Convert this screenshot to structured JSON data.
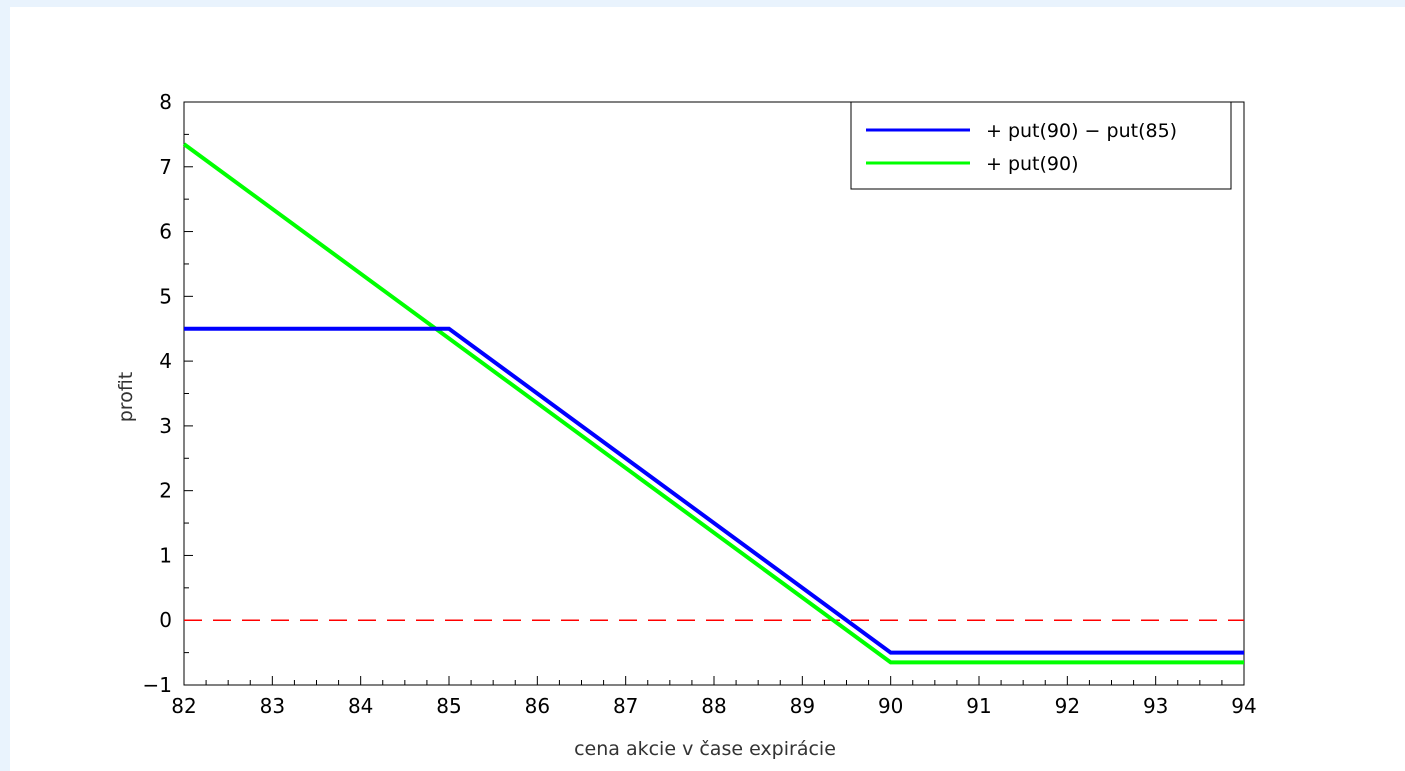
{
  "chart_data": {
    "type": "line",
    "title": "",
    "xlabel": "cena akcie v čase expirácie",
    "ylabel": "profit",
    "xlim": [
      82,
      94
    ],
    "ylim": [
      -1,
      8
    ],
    "x_ticks": [
      82,
      83,
      84,
      85,
      86,
      87,
      88,
      89,
      90,
      91,
      92,
      93,
      94
    ],
    "y_ticks": [
      -1,
      0,
      1,
      2,
      3,
      4,
      5,
      6,
      7,
      8
    ],
    "x_tick_labels": [
      "82",
      "83",
      "84",
      "85",
      "86",
      "87",
      "88",
      "89",
      "90",
      "91",
      "92",
      "93",
      "94"
    ],
    "y_tick_labels": [
      "−1",
      "0",
      "1",
      "2",
      "3",
      "4",
      "5",
      "6",
      "7",
      "8"
    ],
    "grid": false,
    "legend_position": "top-right",
    "series": [
      {
        "name": "+ put(90) − put(85)",
        "color": "#0000ff",
        "x": [
          82,
          85,
          90,
          94
        ],
        "y": [
          4.5,
          4.5,
          -0.5,
          -0.5
        ]
      },
      {
        "name": "+ put(90)",
        "color": "#00ff00",
        "x": [
          82,
          90,
          94
        ],
        "y": [
          7.35,
          -0.65,
          -0.65
        ]
      }
    ],
    "reference_lines": [
      {
        "axis": "y",
        "value": 0,
        "color": "#ff0000",
        "style": "dashed"
      }
    ]
  }
}
